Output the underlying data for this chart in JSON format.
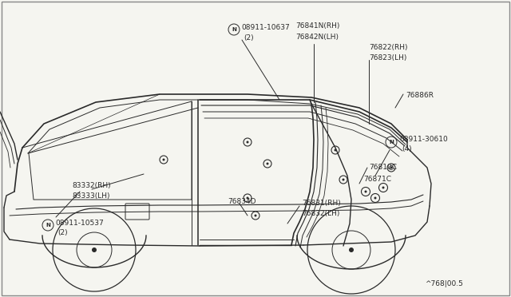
{
  "background_color": "#f5f5f0",
  "line_color": "#2a2a2a",
  "text_color": "#2a2a2a",
  "fig_width": 6.4,
  "fig_height": 3.72,
  "dpi": 100,
  "footer_text": "^768|00.5",
  "labels": {
    "n1_text": "08911-10637",
    "n1_sub": "(2)",
    "n2_text": "08911-10537",
    "n2_sub": "(2)",
    "n3_text": "08911-30610",
    "n3_sub": "(4)",
    "part1a": "76841N(RH)",
    "part1b": "76842N(LH)",
    "part2a": "76822(RH)",
    "part2b": "76823(LH)",
    "part3": "76886R",
    "part4": "76810C",
    "part5": "76871C",
    "part6a": "76831(RH)",
    "part6b": "76832(LH)",
    "part7": "76834D",
    "part8a": "83332(RH)",
    "part8b": "83333(LH)"
  }
}
